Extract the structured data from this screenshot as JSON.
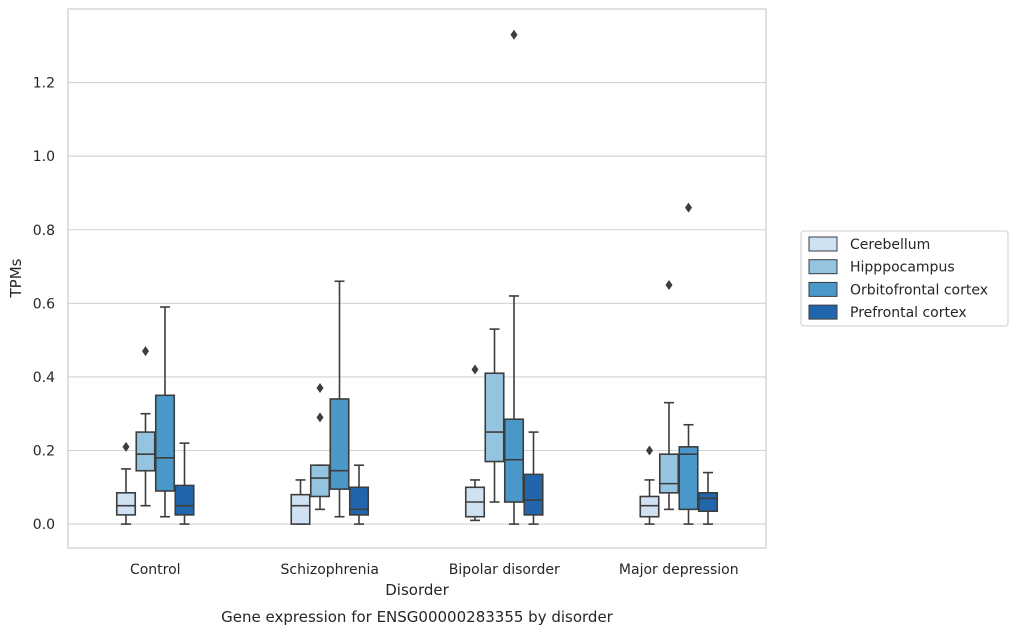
{
  "chart_data": {
    "type": "box",
    "caption": "Gene expression for ENSG00000283355 by disorder",
    "xlabel": "Disorder",
    "ylabel": "TPMs",
    "ylim": [
      -0.065,
      1.4
    ],
    "yticks": [
      0.0,
      0.2,
      0.4,
      0.6,
      0.8,
      1.0,
      1.2
    ],
    "ytick_labels": [
      "0.0",
      "0.2",
      "0.4",
      "0.6",
      "0.8",
      "1.0",
      "1.2"
    ],
    "grid": "horizontal",
    "legend_position": "right",
    "categories": [
      "Control",
      "Schizophrenia",
      "Bipolar disorder",
      "Major depression"
    ],
    "series": [
      {
        "name": "Cerebellum",
        "color": "#d0e1f2",
        "boxes": [
          {
            "whisker_low": 0.0,
            "q1": 0.025,
            "median": 0.05,
            "q3": 0.085,
            "whisker_high": 0.15,
            "outliers": [
              0.21
            ]
          },
          {
            "whisker_low": 0.0,
            "q1": 0.0,
            "median": 0.05,
            "q3": 0.08,
            "whisker_high": 0.12,
            "outliers": []
          },
          {
            "whisker_low": 0.01,
            "q1": 0.02,
            "median": 0.06,
            "q3": 0.1,
            "whisker_high": 0.12,
            "outliers": [
              0.42
            ]
          },
          {
            "whisker_low": 0.0,
            "q1": 0.02,
            "median": 0.05,
            "q3": 0.075,
            "whisker_high": 0.12,
            "outliers": [
              0.2
            ]
          }
        ]
      },
      {
        "name": "Hipppocampus",
        "color": "#94c4df",
        "boxes": [
          {
            "whisker_low": 0.05,
            "q1": 0.145,
            "median": 0.19,
            "q3": 0.25,
            "whisker_high": 0.3,
            "outliers": [
              0.47
            ]
          },
          {
            "whisker_low": 0.04,
            "q1": 0.075,
            "median": 0.125,
            "q3": 0.16,
            "whisker_high": 0.16,
            "outliers": [
              0.29,
              0.37
            ]
          },
          {
            "whisker_low": 0.06,
            "q1": 0.17,
            "median": 0.25,
            "q3": 0.41,
            "whisker_high": 0.53,
            "outliers": []
          },
          {
            "whisker_low": 0.04,
            "q1": 0.085,
            "median": 0.11,
            "q3": 0.19,
            "whisker_high": 0.33,
            "outliers": [
              0.65
            ]
          }
        ]
      },
      {
        "name": "Orbitofrontal cortex",
        "color": "#4a98c9",
        "boxes": [
          {
            "whisker_low": 0.02,
            "q1": 0.09,
            "median": 0.18,
            "q3": 0.35,
            "whisker_high": 0.59,
            "outliers": []
          },
          {
            "whisker_low": 0.02,
            "q1": 0.095,
            "median": 0.145,
            "q3": 0.34,
            "whisker_high": 0.66,
            "outliers": []
          },
          {
            "whisker_low": 0.0,
            "q1": 0.06,
            "median": 0.175,
            "q3": 0.285,
            "whisker_high": 0.62,
            "outliers": [
              1.33
            ]
          },
          {
            "whisker_low": 0.0,
            "q1": 0.04,
            "median": 0.19,
            "q3": 0.21,
            "whisker_high": 0.27,
            "outliers": [
              0.86
            ]
          }
        ]
      },
      {
        "name": "Prefrontal cortex",
        "color": "#2166ac",
        "boxes": [
          {
            "whisker_low": 0.0,
            "q1": 0.025,
            "median": 0.05,
            "q3": 0.105,
            "whisker_high": 0.22,
            "outliers": []
          },
          {
            "whisker_low": 0.0,
            "q1": 0.025,
            "median": 0.04,
            "q3": 0.1,
            "whisker_high": 0.16,
            "outliers": []
          },
          {
            "whisker_low": 0.0,
            "q1": 0.025,
            "median": 0.065,
            "q3": 0.135,
            "whisker_high": 0.25,
            "outliers": []
          },
          {
            "whisker_low": 0.0,
            "q1": 0.035,
            "median": 0.07,
            "q3": 0.085,
            "whisker_high": 0.14,
            "outliers": []
          }
        ]
      }
    ]
  }
}
